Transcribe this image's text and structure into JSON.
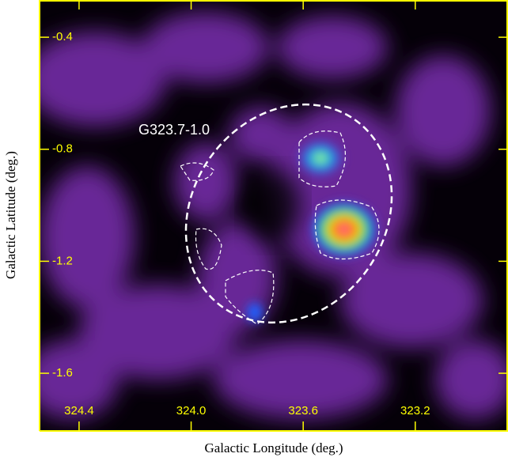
{
  "chart_data": {
    "type": "image",
    "annotation": "G323.7-1.0",
    "xlabel": "Galactic Longitude (deg.)",
    "ylabel": "Galactic Latitude (deg.)",
    "xlim": [
      324.541,
      322.869
    ],
    "ylim": [
      -1.806,
      -0.267
    ],
    "xticks": [
      324.4,
      {
        "value": 324,
        "label": "324.0"
      },
      323.6,
      323.2
    ],
    "yticks": [
      -0.4,
      -0.8,
      -1.2,
      -1.6
    ],
    "tick_color": "#ffff00"
  }
}
